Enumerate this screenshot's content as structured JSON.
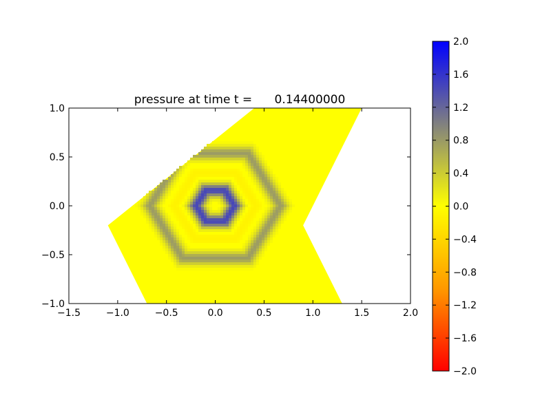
{
  "chart_data": {
    "type": "heatmap",
    "title": "pressure at time t =      0.14400000",
    "xlabel": "",
    "ylabel": "",
    "xlim": [
      -1.5,
      2.0
    ],
    "ylim": [
      -1.0,
      1.0
    ],
    "x_ticks": [
      "−1.5",
      "−1.0",
      "−0.5",
      "0.0",
      "0.5",
      "1.0",
      "1.5",
      "2.0"
    ],
    "y_ticks": [
      "−1.0",
      "−0.5",
      "0.0",
      "0.5",
      "1.0"
    ],
    "grid": false,
    "domain_polygon": [
      [
        0.4,
        1.0
      ],
      [
        -1.1,
        -0.2
      ],
      [
        -0.7,
        -1.0
      ],
      [
        1.3,
        -1.0
      ],
      [
        0.9,
        -0.2
      ],
      [
        1.5,
        1.0
      ]
    ],
    "field": {
      "center": [
        0.0,
        0.0
      ],
      "inner_peak_radius": 0.17,
      "outer_ring_radius": 0.58,
      "values_description_levels": [
        0.0,
        1.4,
        0.0,
        0.75,
        0.0
      ]
    },
    "colorbar": {
      "range": [
        -2.0,
        2.0
      ],
      "ticks": [
        "2.0",
        "1.6",
        "1.2",
        "0.8",
        "0.4",
        "0.0",
        "−0.4",
        "−0.8",
        "−1.2",
        "−1.6",
        "−2.0"
      ],
      "colors": {
        "min": "#ff0000",
        "low_mid": "#ff9900",
        "zero": "#ffff00",
        "high_mid": "#808080",
        "max": "#0000ff"
      }
    }
  }
}
